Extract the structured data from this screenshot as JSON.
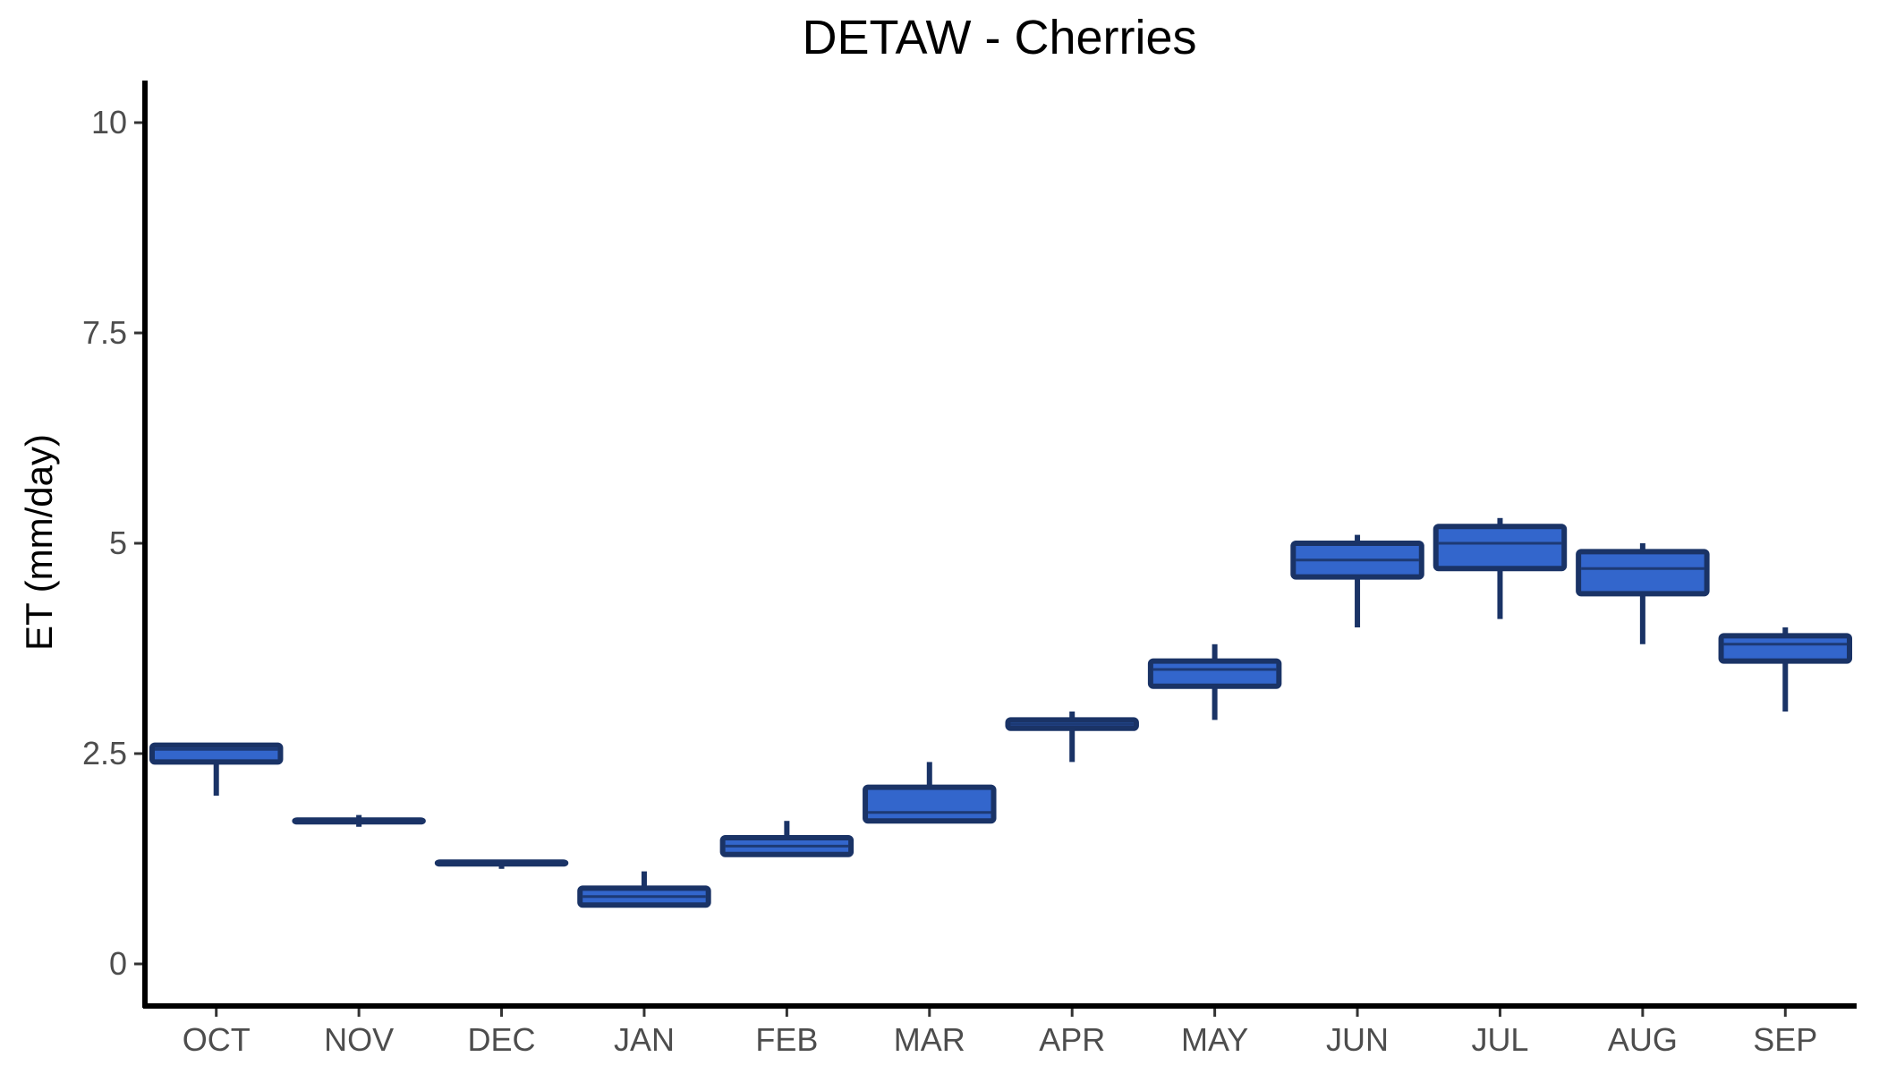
{
  "chart_data": {
    "type": "box",
    "title": "DETAW - Cherries",
    "xlabel": "",
    "ylabel": "ET (mm/day)",
    "ylim": [
      -0.5,
      10.5
    ],
    "yticks": [
      0,
      2.5,
      5,
      7.5,
      10
    ],
    "ytick_labels": [
      "0",
      "2.5",
      "5",
      "7.5",
      "10"
    ],
    "grid": false,
    "legend": "none",
    "colors": {
      "box_fill": "#3366cc",
      "box_edge": "#1a3366",
      "axis": "#000000"
    },
    "categories": [
      "OCT",
      "NOV",
      "DEC",
      "JAN",
      "FEB",
      "MAR",
      "APR",
      "MAY",
      "JUN",
      "JUL",
      "AUG",
      "SEP"
    ],
    "boxes": [
      {
        "category": "OCT",
        "min": 2.0,
        "q1": 2.4,
        "median": 2.55,
        "q3": 2.6,
        "max": 2.6
      },
      {
        "category": "NOV",
        "min": 1.63,
        "q1": 1.69,
        "median": 1.7,
        "q3": 1.71,
        "max": 1.77
      },
      {
        "category": "DEC",
        "min": 1.13,
        "q1": 1.19,
        "median": 1.2,
        "q3": 1.21,
        "max": 1.21
      },
      {
        "category": "JAN",
        "min": 0.7,
        "q1": 0.7,
        "median": 0.8,
        "q3": 0.9,
        "max": 1.1
      },
      {
        "category": "FEB",
        "min": 1.3,
        "q1": 1.3,
        "median": 1.4,
        "q3": 1.5,
        "max": 1.7
      },
      {
        "category": "MAR",
        "min": 1.7,
        "q1": 1.7,
        "median": 1.8,
        "q3": 2.1,
        "max": 2.4
      },
      {
        "category": "APR",
        "min": 2.4,
        "q1": 2.8,
        "median": 2.85,
        "q3": 2.9,
        "max": 3.0
      },
      {
        "category": "MAY",
        "min": 2.9,
        "q1": 3.3,
        "median": 3.5,
        "q3": 3.6,
        "max": 3.8
      },
      {
        "category": "JUN",
        "min": 4.0,
        "q1": 4.6,
        "median": 4.8,
        "q3": 5.0,
        "max": 5.1
      },
      {
        "category": "JUL",
        "min": 4.1,
        "q1": 4.7,
        "median": 5.0,
        "q3": 5.2,
        "max": 5.3
      },
      {
        "category": "AUG",
        "min": 3.8,
        "q1": 4.4,
        "median": 4.7,
        "q3": 4.9,
        "max": 5.0
      },
      {
        "category": "SEP",
        "min": 3.0,
        "q1": 3.6,
        "median": 3.8,
        "q3": 3.9,
        "max": 4.0
      }
    ]
  }
}
